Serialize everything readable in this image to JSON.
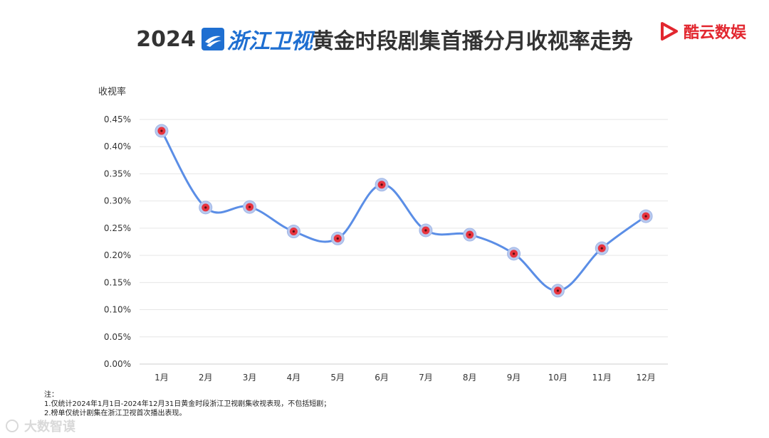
{
  "header": {
    "year": "2024",
    "channel": "浙江卫视",
    "title": "黄金时段剧集首播分月收视率走势",
    "brand": "酷云数娱"
  },
  "chart_data": {
    "type": "line",
    "ylabel": "收视率",
    "categories": [
      "1月",
      "2月",
      "3月",
      "4月",
      "5月",
      "6月",
      "7月",
      "8月",
      "9月",
      "10月",
      "11月",
      "12月"
    ],
    "values": [
      0.429,
      0.288,
      0.289,
      0.244,
      0.231,
      0.33,
      0.246,
      0.238,
      0.203,
      0.135,
      0.213,
      0.272
    ],
    "ylim": [
      0,
      0.45
    ],
    "yticks": [
      "0.00%",
      "0.05%",
      "0.10%",
      "0.15%",
      "0.20%",
      "0.25%",
      "0.30%",
      "0.35%",
      "0.40%",
      "0.45%"
    ],
    "line_color": "#5b8ee6",
    "marker_color": "#e8343f",
    "grid": true
  },
  "notes": {
    "head": "注：",
    "line1": "1.仅统计2024年1月1日-2024年12月31日黄金时段浙江卫视剧集收视表现，不包括短剧；",
    "line2": "2.榜单仅统计剧集在浙江卫视首次播出表现。"
  },
  "watermark": "大数智谟"
}
